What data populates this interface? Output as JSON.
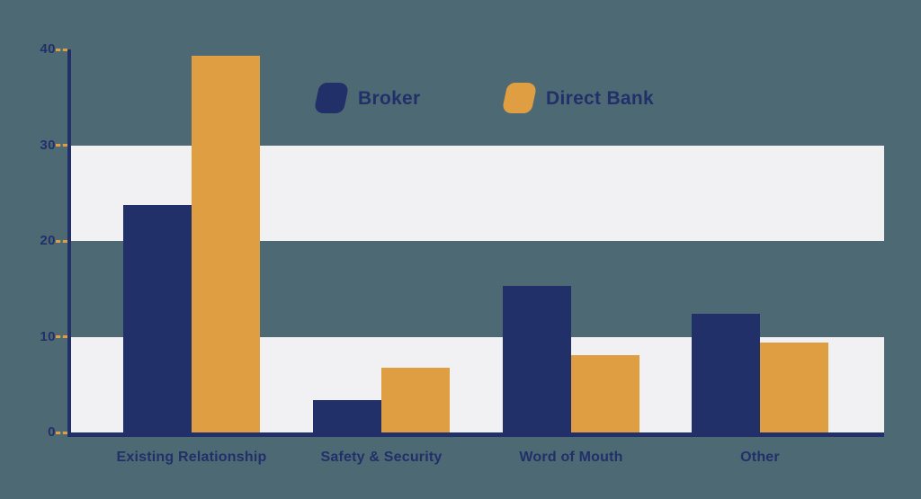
{
  "chart_data": {
    "type": "bar",
    "title": "",
    "xlabel": "",
    "ylabel": "",
    "categories": [
      "Existing Relationship",
      "Safety & Security",
      "Word of Mouth",
      "Other"
    ],
    "series": [
      {
        "name": "Broker",
        "color": "#22306a",
        "values": [
          23.8,
          3.4,
          15.3,
          12.4
        ]
      },
      {
        "name": "Direct Bank",
        "color": "#df9e41",
        "values": [
          39.3,
          6.8,
          8.1,
          9.4
        ]
      }
    ],
    "ylim": [
      0,
      40
    ],
    "yticks": [
      "40",
      "30",
      "20",
      "10",
      "0"
    ],
    "legend_position": "top-center",
    "grid": "horizontal highlight bands for ranges 20-30 and 0-10"
  },
  "colors": {
    "background": "#4d6973",
    "band": "#f1f1f3",
    "axis": "#22306a",
    "tick_dash": "#df9e41",
    "text": "#22306a"
  }
}
